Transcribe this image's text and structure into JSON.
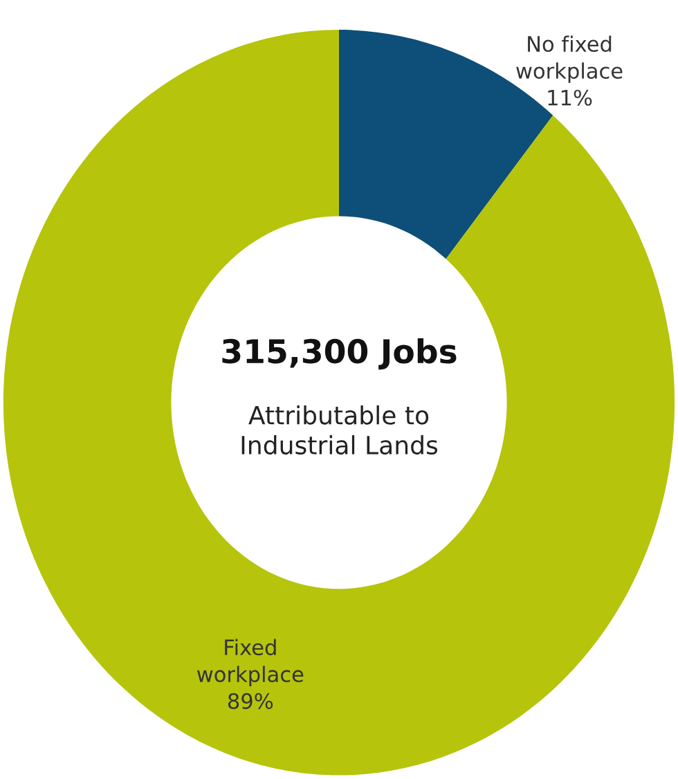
{
  "chart_data": {
    "type": "donut",
    "categories": [
      "No fixed\nworkplace",
      "Fixed\nworkplace"
    ],
    "values": [
      11,
      89
    ],
    "colors": [
      "#0d4f78",
      "#b6c40c"
    ],
    "value_labels": [
      "11%",
      "89%"
    ],
    "annotations": [
      "315,300 Jobs",
      "Attributable to\nIndustrial Lands"
    ]
  }
}
